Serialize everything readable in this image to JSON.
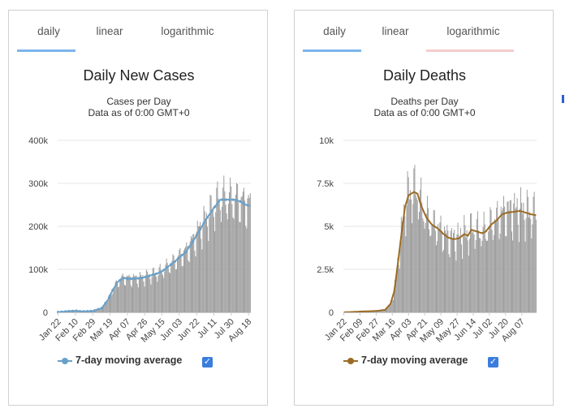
{
  "panels": [
    {
      "id": "cases",
      "tabs": [
        "daily",
        "linear",
        "logarithmic"
      ],
      "active_tab": "daily",
      "legend_label": "7-day moving average",
      "legend_checked": true,
      "colors": {
        "bar": "#999999",
        "avg": "#6aa0c8",
        "tab_active": "#7cb5ec",
        "tab_hover": "#f4cccc"
      }
    },
    {
      "id": "deaths",
      "tabs": [
        "daily",
        "linear",
        "logarithmic"
      ],
      "active_tab": "daily",
      "legend_label": "7-day moving average",
      "legend_checked": true,
      "colors": {
        "bar": "#999999",
        "avg": "#9c6b25",
        "tab_active": "#7cb5ec",
        "tab_hover": "#f4cccc"
      }
    }
  ],
  "chart_data": [
    {
      "type": "bar",
      "title": "Daily New Cases",
      "subtitle": "Cases per Day",
      "note": "Data as of 0:00 GMT+0",
      "ylim": [
        0,
        400000
      ],
      "yticks": [
        0,
        100000,
        200000,
        300000,
        400000
      ],
      "ytick_labels": [
        "0",
        "100k",
        "200k",
        "300k",
        "400k"
      ],
      "xtick_labels": [
        "Jan 22",
        "Feb 10",
        "Feb 29",
        "Mar 19",
        "Apr 07",
        "Apr 26",
        "May 15",
        "Jun 03",
        "Jun 22",
        "Jul 11",
        "Jul 30",
        "Aug 18"
      ],
      "days": 212,
      "xtick_day_index": [
        0,
        19,
        38,
        57,
        76,
        95,
        114,
        133,
        152,
        171,
        190,
        209
      ],
      "avg_knots": [
        [
          0,
          500
        ],
        [
          14,
          3000
        ],
        [
          20,
          3500
        ],
        [
          26,
          2000
        ],
        [
          38,
          3000
        ],
        [
          48,
          10000
        ],
        [
          55,
          30000
        ],
        [
          60,
          52000
        ],
        [
          66,
          72000
        ],
        [
          72,
          80000
        ],
        [
          76,
          78000
        ],
        [
          82,
          78000
        ],
        [
          92,
          80000
        ],
        [
          100,
          85000
        ],
        [
          108,
          90000
        ],
        [
          114,
          95000
        ],
        [
          120,
          105000
        ],
        [
          128,
          118000
        ],
        [
          133,
          128000
        ],
        [
          140,
          140000
        ],
        [
          148,
          165000
        ],
        [
          155,
          190000
        ],
        [
          162,
          215000
        ],
        [
          170,
          240000
        ],
        [
          178,
          262000
        ],
        [
          186,
          262000
        ],
        [
          194,
          262000
        ],
        [
          200,
          258000
        ],
        [
          206,
          250000
        ],
        [
          211,
          248000
        ]
      ],
      "bar_amp": 0.13,
      "bar_phase": 3,
      "series_name": "7-day moving average"
    },
    {
      "type": "bar",
      "title": "Daily Deaths",
      "subtitle": "Deaths per Day",
      "note": "Data as of 0:00 GMT+0",
      "ylim": [
        0,
        10000
      ],
      "yticks": [
        0,
        2500,
        5000,
        7500,
        10000
      ],
      "ytick_labels": [
        "0",
        "2.5k",
        "5k",
        "7.5k",
        "10k"
      ],
      "xtick_labels": [
        "Jan 22",
        "Feb 09",
        "Feb 27",
        "Mar 16",
        "Apr 03",
        "Apr 21",
        "May 09",
        "May 27",
        "Jun 14",
        "Jul 02",
        "Jul 20",
        "Aug 07"
      ],
      "days": 215,
      "xtick_day_index": [
        0,
        18,
        36,
        54,
        72,
        90,
        108,
        126,
        144,
        162,
        180,
        198
      ],
      "avg_knots": [
        [
          0,
          0
        ],
        [
          20,
          50
        ],
        [
          36,
          80
        ],
        [
          46,
          150
        ],
        [
          52,
          500
        ],
        [
          56,
          1200
        ],
        [
          60,
          2800
        ],
        [
          64,
          4500
        ],
        [
          68,
          6100
        ],
        [
          72,
          6800
        ],
        [
          78,
          7000
        ],
        [
          82,
          6900
        ],
        [
          86,
          6200
        ],
        [
          92,
          5500
        ],
        [
          98,
          5100
        ],
        [
          104,
          4900
        ],
        [
          110,
          4600
        ],
        [
          116,
          4350
        ],
        [
          122,
          4250
        ],
        [
          128,
          4300
        ],
        [
          134,
          4550
        ],
        [
          138,
          4450
        ],
        [
          142,
          4800
        ],
        [
          148,
          4700
        ],
        [
          154,
          4600
        ],
        [
          158,
          4700
        ],
        [
          164,
          5100
        ],
        [
          170,
          5350
        ],
        [
          176,
          5700
        ],
        [
          182,
          5800
        ],
        [
          190,
          5850
        ],
        [
          196,
          5900
        ],
        [
          202,
          5800
        ],
        [
          208,
          5700
        ],
        [
          214,
          5650
        ]
      ],
      "bar_amp": 0.22,
      "bar_phase": 1,
      "series_name": "7-day moving average"
    }
  ]
}
